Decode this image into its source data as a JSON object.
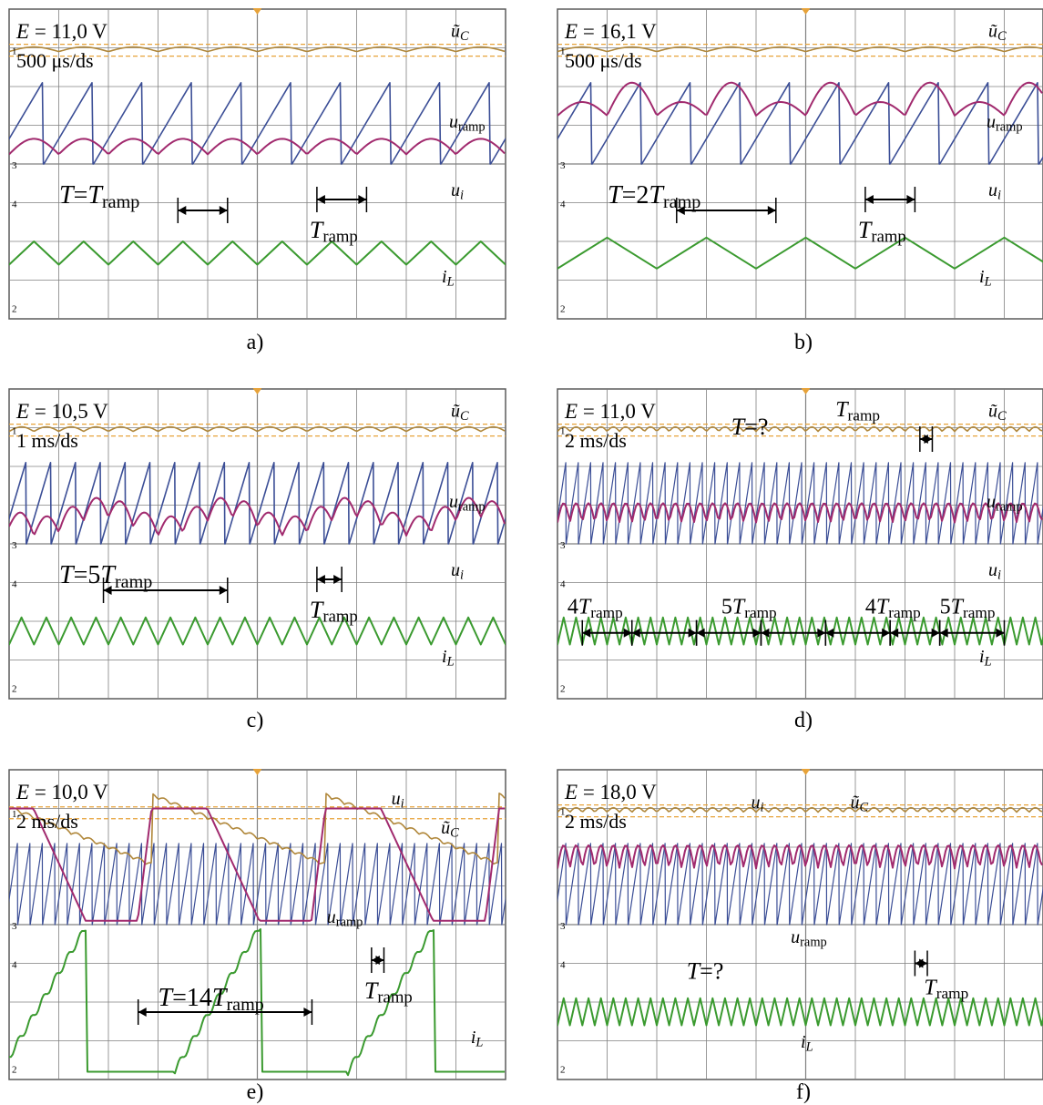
{
  "colors": {
    "background": "#ffffff",
    "grid": "#808080",
    "frame": "#5a5a5a",
    "ref": "#e7a33a",
    "u_C": "#b0873a",
    "u_ramp": "#3b4e96",
    "u_i": "#a12a6e",
    "i_L": "#3a9a2f",
    "annotation": "#000000"
  },
  "chart_data": [
    {
      "panel": "a)",
      "type": "line",
      "E_label": "E = 11,0 V",
      "timebase": "500 μs/ds",
      "ramp_period_div": 1.0,
      "orbit_period_ramps": 1,
      "ui_shape": "arch",
      "ui_level_div": 3.5,
      "ui_amplitude_div": 0.4,
      "uc_level_div": 1.05,
      "ramp_low_div": 4.0,
      "ramp_high_div": 1.9,
      "iL_low_div": 6.6,
      "iL_high_div": 6.0,
      "iL_teeth_per_ramp": 1,
      "labels": [
        "ũC",
        "uramp",
        "ui",
        "iL"
      ],
      "annotations": [
        "T=Tramp",
        "Tramp"
      ]
    },
    {
      "panel": "b)",
      "type": "line",
      "E_label": "E = 16,1 V",
      "timebase": "500 μs/ds",
      "ramp_period_div": 1.0,
      "orbit_period_ramps": 2,
      "ui_shape": "arch",
      "ui_level_div": 2.5,
      "ui_amplitude_div": 0.6,
      "uc_level_div": 1.05,
      "ramp_low_div": 4.0,
      "ramp_high_div": 1.9,
      "iL_low_div": 6.7,
      "iL_high_div": 5.9,
      "iL_teeth_per_ramp": 0.5,
      "labels": [
        "ũC",
        "ui",
        "uramp",
        "iL"
      ],
      "annotations": [
        "T=2Tramp",
        "Tramp"
      ]
    },
    {
      "panel": "c)",
      "type": "line",
      "E_label": "E = 10,5 V",
      "timebase": "1 ms/ds",
      "ramp_period_div": 0.5,
      "orbit_period_ramps": 5,
      "ui_shape": "arch",
      "ui_level_div": 3.3,
      "ui_amplitude_div": 0.5,
      "uc_level_div": 1.05,
      "ramp_low_div": 4.0,
      "ramp_high_div": 1.9,
      "iL_low_div": 6.6,
      "iL_high_div": 5.9,
      "iL_teeth_per_ramp": 1,
      "labels": [
        "ũC",
        "uramp",
        "ui",
        "iL"
      ],
      "annotations": [
        "T=5Tramp",
        "Tramp"
      ]
    },
    {
      "panel": "d)",
      "type": "line",
      "E_label": "E = 11,0 V",
      "timebase": "2 ms/ds",
      "ramp_period_div": 0.25,
      "orbit_period_ramps": 0,
      "ui_shape": "arch",
      "ui_level_div": 3.2,
      "ui_amplitude_div": 0.5,
      "uc_level_div": 1.05,
      "ramp_low_div": 4.0,
      "ramp_high_div": 1.9,
      "iL_low_div": 6.6,
      "iL_high_div": 5.9,
      "iL_teeth_per_ramp": 1,
      "labels": [
        "ũC",
        "uramp",
        "ui",
        "iL"
      ],
      "annotations": [
        "T=?",
        "Tramp",
        "4Tramp",
        "5Tramp",
        "4Tramp",
        "5Tramp"
      ]
    },
    {
      "panel": "e)",
      "type": "line",
      "E_label": "E = 10,0 V",
      "timebase": "2 ms/ds",
      "ramp_period_div": 0.25,
      "orbit_period_ramps": 14,
      "ui_shape": "flat",
      "ui_level_div": 1.1,
      "ui_amplitude_div": 2.9,
      "uc_level_div": 1.1,
      "ramp_low_div": 4.0,
      "ramp_high_div": 1.9,
      "iL_low_div": 6.6,
      "iL_high_div": 4.0,
      "iL_teeth_per_ramp": 1,
      "labels": [
        "ui",
        "ũC",
        "uramp",
        "iL"
      ],
      "annotations": [
        "T=14Tramp",
        "Tramp"
      ]
    },
    {
      "panel": "f)",
      "type": "line",
      "E_label": "E = 18,0 V",
      "timebase": "2 ms/ds",
      "ramp_period_div": 0.25,
      "orbit_period_ramps": 0,
      "ui_shape": "arch",
      "ui_level_div": 2.3,
      "ui_amplitude_div": 0.6,
      "uc_level_div": 1.05,
      "ramp_low_div": 4.0,
      "ramp_high_div": 1.9,
      "iL_low_div": 6.6,
      "iL_high_div": 5.9,
      "iL_teeth_per_ramp": 1,
      "labels": [
        "ui",
        "ũC",
        "uramp",
        "iL"
      ],
      "annotations": [
        "T=?",
        "Tramp"
      ]
    }
  ],
  "channel_markers": [
    "1",
    "2",
    "3",
    "4"
  ]
}
